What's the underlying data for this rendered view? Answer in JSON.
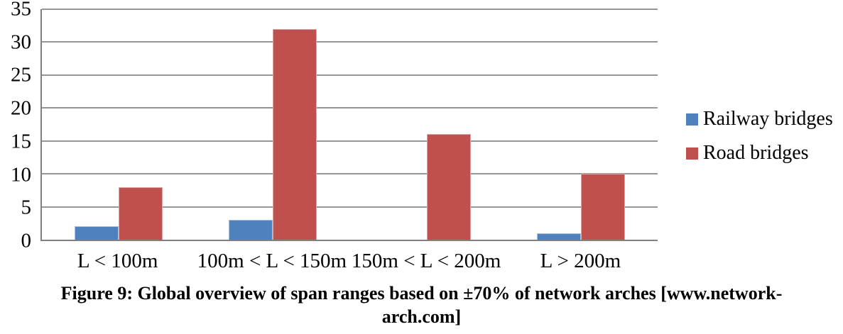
{
  "chart_data": {
    "type": "bar",
    "title": "",
    "xlabel": "",
    "ylabel": "",
    "categories": [
      "L < 100m",
      "100m < L < 150m",
      "150m < L < 200m",
      "L > 200m"
    ],
    "series": [
      {
        "name": "Railway bridges",
        "color": "#4F81BD",
        "edge_color": "#A8C0DE",
        "values": [
          2,
          3,
          0,
          1
        ]
      },
      {
        "name": "Road bridges",
        "color": "#C0504D",
        "edge_color": "#DEA7A5",
        "values": [
          8,
          32,
          16,
          10
        ]
      }
    ],
    "ylim": [
      0,
      35
    ],
    "yticks": [
      0,
      5,
      10,
      15,
      20,
      25,
      30,
      35
    ],
    "grid": true,
    "gridline_color": "#969696",
    "axis_color": "#808080",
    "legend_position": "right"
  },
  "caption": {
    "text": "Figure 9: Global overview of span ranges based on ±70% of network arches [www.network-arch.com]",
    "lines": [
      "Figure 9: Global overview of span ranges based on ±70% of network arches [www.network-",
      "arch.com]"
    ]
  }
}
